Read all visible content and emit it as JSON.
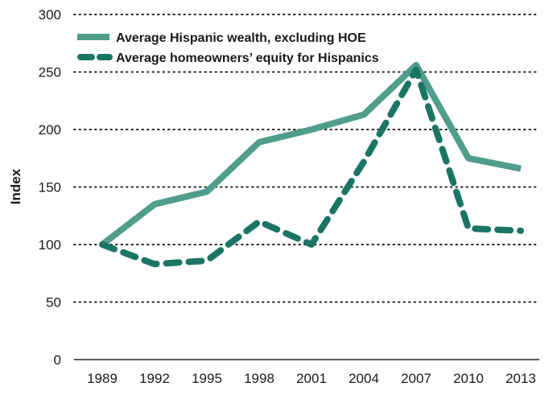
{
  "colors": {
    "wealth_line": "#4f9d8a",
    "equity_line": "#1b7565"
  },
  "chart_data": {
    "type": "line",
    "title": "",
    "xlabel": "",
    "ylabel": "Index",
    "x": [
      "1989",
      "1992",
      "1995",
      "1998",
      "2001",
      "2004",
      "2007",
      "2010",
      "2013"
    ],
    "ylim": [
      0,
      300
    ],
    "yticks": [
      "0",
      "50",
      "100",
      "150",
      "200",
      "250",
      "300"
    ],
    "grid": true,
    "legend_position": "top-left",
    "series": [
      {
        "name": "Average Hispanic wealth, excluding HOE",
        "style": "solid",
        "values": [
          100,
          135,
          146,
          189,
          200,
          213,
          256,
          175,
          166
        ]
      },
      {
        "name": "Average homeowners’ equity for Hispanics",
        "style": "dashed",
        "values": [
          100,
          83,
          86,
          120,
          100,
          172,
          252,
          114,
          112
        ]
      }
    ]
  }
}
